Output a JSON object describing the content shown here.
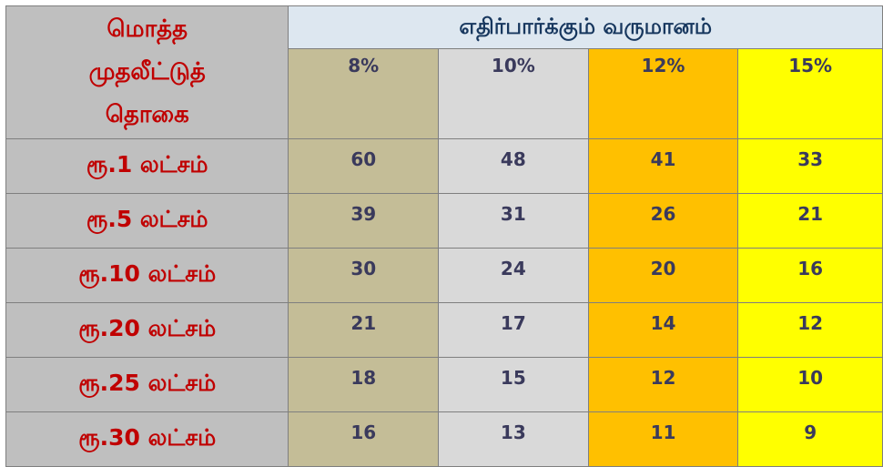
{
  "table": {
    "amount_header_lines": [
      "மொத்த",
      "முதலீட்டுத்",
      "தொகை"
    ],
    "expected_header": "எதிர்பார்க்கும் வருமானம்",
    "rates": [
      "8%",
      "10%",
      "12%",
      "15%"
    ],
    "rows": [
      {
        "label": "ரூ.1 லட்சம்",
        "values": [
          "60",
          "48",
          "41",
          "33"
        ]
      },
      {
        "label": "ரூ.5 லட்சம்",
        "values": [
          "39",
          "31",
          "26",
          "21"
        ]
      },
      {
        "label": "ரூ.10 லட்சம்",
        "values": [
          "30",
          "24",
          "20",
          "16"
        ]
      },
      {
        "label": "ரூ.20 லட்சம்",
        "values": [
          "21",
          "17",
          "14",
          "12"
        ]
      },
      {
        "label": "ரூ.25 லட்சம்",
        "values": [
          "18",
          "15",
          "12",
          "10"
        ]
      },
      {
        "label": "ரூ.30 லட்சம்",
        "values": [
          "16",
          "13",
          "11",
          "9"
        ]
      }
    ]
  },
  "colors": {
    "label_red": "#c00000",
    "header_blue": "#17375e",
    "rate_8": "#c4bd97",
    "rate_10": "#d9d9d9",
    "rate_12": "#ffc000",
    "rate_15": "#ffff00",
    "label_column": "#bfbfbf"
  }
}
